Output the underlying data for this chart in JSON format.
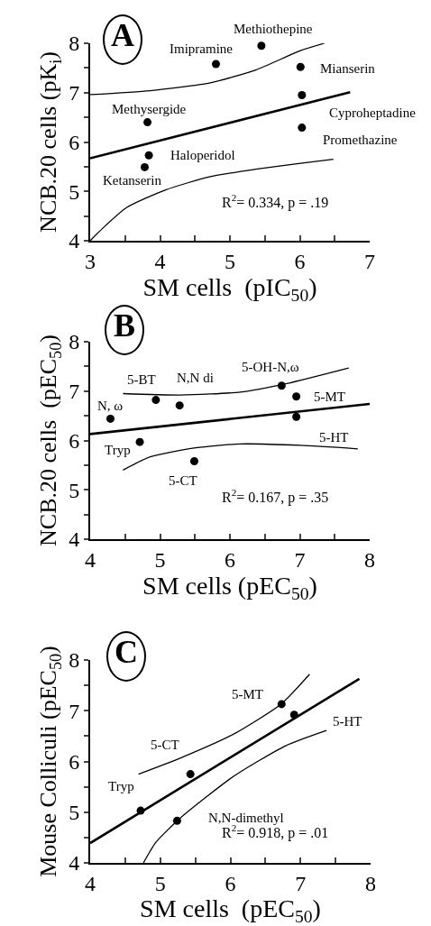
{
  "chart_data": [
    {
      "type": "scatter",
      "title": "A",
      "xlabel": "SM cells  (pIC$_{50}$)",
      "ylabel": "NCB.20 cells (pK$_{i}$)",
      "xlim": [
        3,
        7
      ],
      "ylim": [
        4,
        8
      ],
      "xticks": [
        3,
        {
          "value": 3.5,
          "label": null
        },
        4,
        {
          "value": 4.5,
          "label": null
        },
        5,
        {
          "value": 5.5,
          "label": null
        },
        6,
        {
          "value": 6.5,
          "label": null
        },
        7
      ],
      "yticks": [
        4,
        {
          "value": 4.5,
          "label": null
        },
        5,
        {
          "value": 5.5,
          "label": null
        },
        6,
        {
          "value": 6.5,
          "label": null
        },
        7,
        {
          "value": 7.5,
          "label": null
        },
        8
      ],
      "grid": false,
      "line_style": "solid",
      "series": [
        {
          "marker": "circle",
          "color": "#000000",
          "x": [
            5.45,
            4.8,
            6.01,
            6.03,
            6.03,
            3.82,
            3.84,
            3.78
          ],
          "values": [
            7.95,
            7.58,
            7.52,
            6.95,
            6.29,
            6.4,
            5.73,
            5.49
          ]
        },
        {
          "type": "line",
          "marker": "none",
          "color": "#000000",
          "x": [
            3,
            6.72
          ],
          "values": [
            5.67,
            7.01
          ]
        },
        {
          "type": "line",
          "marker": "none",
          "color": "#000000",
          "x": [
            3,
            3.86,
            4.72,
            5.37,
            6.01,
            6.35
          ],
          "values": [
            6.96,
            7.04,
            7.2,
            7.46,
            7.85,
            8.0
          ]
        },
        {
          "type": "line",
          "marker": "none",
          "color": "#000000",
          "x": [
            3,
            3.17,
            3.52,
            4.08,
            4.72,
            5.37,
            6.01,
            6.48
          ],
          "values": [
            4.0,
            4.24,
            4.67,
            5.03,
            5.3,
            5.45,
            5.57,
            5.65
          ]
        }
      ],
      "annotations": [
        {
          "text": "Methiothepine",
          "x": 5.45,
          "y": 7.95
        },
        {
          "text": "Imipramine",
          "x": 4.8,
          "y": 7.58
        },
        {
          "text": "Mianserin",
          "x": 6.01,
          "y": 7.52
        },
        {
          "text": "Cyproheptadine",
          "x": 6.03,
          "y": 6.95
        },
        {
          "text": "Promethazine",
          "x": 6.03,
          "y": 6.29
        },
        {
          "text": "Methysergide",
          "x": 3.82,
          "y": 6.4
        },
        {
          "text": "Haloperidol",
          "x": 3.84,
          "y": 5.73
        },
        {
          "text": "Ketanserin",
          "x": 3.78,
          "y": 5.49
        },
        "R$^{2}$= 0.334, p = .19"
      ]
    },
    {
      "type": "scatter",
      "title": "B",
      "xlabel": "SM cells (pEC$_{50}$)",
      "ylabel": "NCB.20 cells  (pEC$_{50}$)",
      "xlim": [
        4,
        8
      ],
      "ylim": [
        4,
        8
      ],
      "xticks": [
        4,
        {
          "value": 4.5,
          "label": null
        },
        5,
        {
          "value": 5.5,
          "label": null
        },
        6,
        {
          "value": 6.5,
          "label": null
        },
        7,
        {
          "value": 7.5,
          "label": null
        },
        8
      ],
      "yticks": [
        4,
        {
          "value": 4.5,
          "label": null
        },
        5,
        {
          "value": 5.5,
          "label": null
        },
        6,
        {
          "value": 6.5,
          "label": null
        },
        7,
        {
          "value": 7.5,
          "label": null
        },
        8
      ],
      "grid": false,
      "line_style": "solid",
      "series": [
        {
          "marker": "circle",
          "color": "#000000",
          "x": [
            4.29,
            4.94,
            5.28,
            6.74,
            6.95,
            6.95,
            4.71,
            5.49
          ],
          "values": [
            6.44,
            6.82,
            6.71,
            7.11,
            6.89,
            6.48,
            5.97,
            5.58
          ]
        },
        {
          "type": "line",
          "marker": "none",
          "color": "#000000",
          "x": [
            4,
            8
          ],
          "values": [
            6.13,
            6.74
          ]
        },
        {
          "type": "line",
          "marker": "none",
          "color": "#000000",
          "x": [
            4.47,
            5.29,
            6.15,
            6.8,
            7.7
          ],
          "values": [
            6.95,
            6.92,
            6.98,
            7.15,
            7.47
          ]
        },
        {
          "type": "line",
          "marker": "none",
          "color": "#000000",
          "x": [
            4.47,
            4.86,
            5.51,
            6.15,
            7.01,
            7.83
          ],
          "values": [
            5.4,
            5.67,
            5.85,
            5.93,
            5.9,
            5.83
          ]
        }
      ],
      "annotations": [
        {
          "text": "N, ω",
          "x": 4.29,
          "y": 6.44
        },
        {
          "text": "5-BT",
          "x": 4.94,
          "y": 6.82
        },
        {
          "text": "N,N di",
          "x": 5.28,
          "y": 6.71
        },
        {
          "text": "5-OH-N,ω",
          "x": 6.74,
          "y": 7.11
        },
        {
          "text": "5-MT",
          "x": 6.95,
          "y": 6.89
        },
        {
          "text": "5-HT",
          "x": 6.95,
          "y": 6.48
        },
        {
          "text": "Tryp",
          "x": 4.71,
          "y": 5.97
        },
        {
          "text": "5-CT",
          "x": 5.49,
          "y": 5.58
        },
        "R$^{2}$= 0.167, p = .35"
      ]
    },
    {
      "type": "scatter",
      "title": "C",
      "xlabel": "SM cells  (pEC$_{50}$)",
      "ylabel": "Mouse Colliculi (pEC$_{50}$)",
      "xlim": [
        4,
        8
      ],
      "ylim": [
        4,
        8
      ],
      "xticks": [
        4,
        {
          "value": 4.5,
          "label": null
        },
        5,
        {
          "value": 5.5,
          "label": null
        },
        6,
        {
          "value": 6.5,
          "label": null
        },
        7,
        {
          "value": 7.5,
          "label": null
        },
        8
      ],
      "yticks": [
        4,
        {
          "value": 4.5,
          "label": null
        },
        5,
        {
          "value": 5.5,
          "label": null
        },
        6,
        {
          "value": 6.5,
          "label": null
        },
        7,
        {
          "value": 7.5,
          "label": null
        },
        8
      ],
      "grid": false,
      "line_style": "solid",
      "series": [
        {
          "marker": "circle",
          "color": "#000000",
          "x": [
            6.73,
            6.91,
            5.43,
            4.72,
            5.24
          ],
          "values": [
            7.13,
            6.92,
            5.75,
            5.03,
            4.83
          ]
        },
        {
          "type": "line",
          "marker": "none",
          "color": "#000000",
          "x": [
            4,
            7.84
          ],
          "values": [
            4.39,
            7.63
          ]
        },
        {
          "type": "line",
          "marker": "none",
          "color": "#000000",
          "x": [
            4.69,
            5.29,
            6.06,
            6.73,
            7.13
          ],
          "values": [
            5.75,
            6.07,
            6.55,
            7.14,
            7.72
          ]
        },
        {
          "type": "line",
          "marker": "none",
          "color": "#000000",
          "x": [
            4.76,
            4.94,
            5.29,
            6.06,
            6.79,
            7.37
          ],
          "values": [
            4.0,
            4.41,
            4.89,
            5.72,
            6.31,
            6.61
          ]
        }
      ],
      "annotations": [
        {
          "text": "5-MT",
          "x": 6.73,
          "y": 7.13
        },
        {
          "text": "5-HT",
          "x": 6.91,
          "y": 6.92
        },
        {
          "text": "5-CT",
          "x": 5.43,
          "y": 5.75
        },
        {
          "text": "Tryp",
          "x": 4.72,
          "y": 5.03
        },
        {
          "text": "N,N-dimethyl",
          "x": 5.24,
          "y": 4.83
        },
        "R$^{2}$= 0.918, p = .01"
      ]
    }
  ]
}
